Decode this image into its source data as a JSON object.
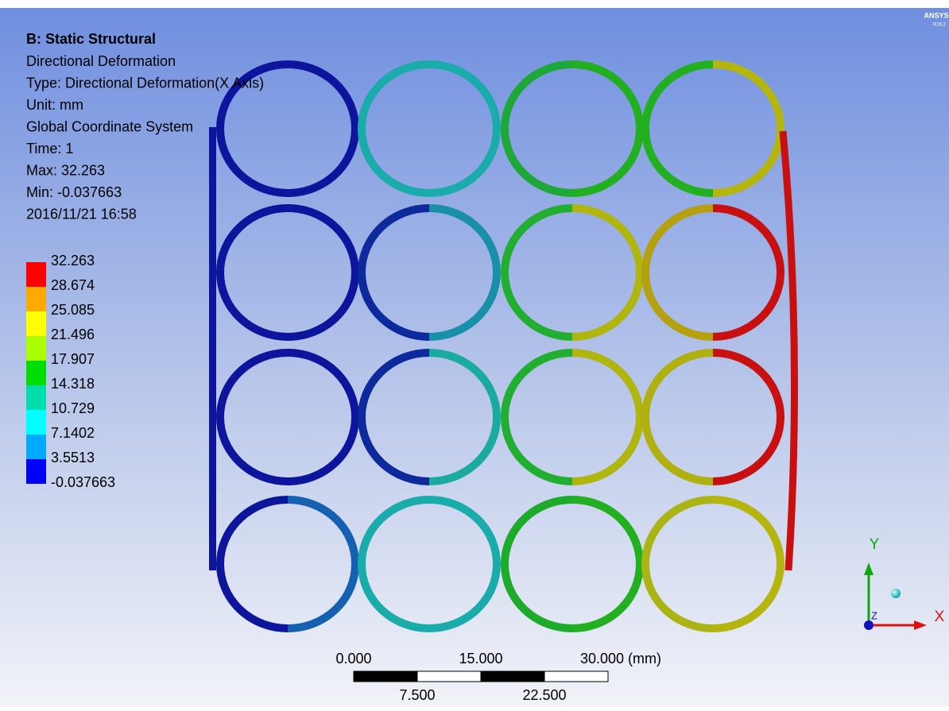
{
  "header": {
    "title": "B: Static Structural",
    "lines": [
      "Directional Deformation",
      "Type: Directional Deformation(X Axis)",
      "Unit: mm",
      "Global Coordinate System",
      "Time: 1",
      "Max: 32.263",
      "Min: -0.037663",
      "2016/11/21 16:58"
    ]
  },
  "legend": {
    "labels": [
      "32.263",
      "28.674",
      "25.085",
      "21.496",
      "17.907",
      "14.318",
      "10.729",
      "7.1402",
      "3.5513",
      "-0.037663"
    ],
    "colors": [
      "#ff0000",
      "#ffaa00",
      "#ffff00",
      "#aaff00",
      "#00dd00",
      "#00ddaa",
      "#00ffff",
      "#00aaff",
      "#0000ff"
    ]
  },
  "scale_bar": {
    "top": [
      "0.000",
      "15.000",
      "30.000 (mm)"
    ],
    "bottom": [
      "7.500",
      "22.500"
    ]
  },
  "triad": {
    "y": "Y",
    "x": "X",
    "z": "Z"
  },
  "logo": {
    "name": "ANSYS",
    "version": "R16.2"
  }
}
